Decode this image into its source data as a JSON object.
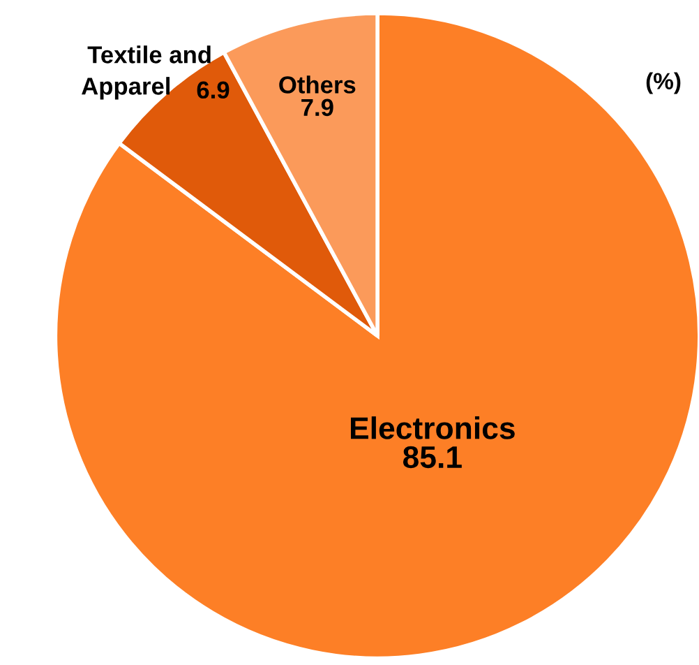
{
  "chart_data": {
    "type": "pie",
    "categories": [
      "Electronics",
      "Textile and\nApparel",
      "Others"
    ],
    "values": [
      85.1,
      6.9,
      7.9
    ],
    "colors": [
      "#fd7f26",
      "#e05a0a",
      "#fb9a5a"
    ],
    "data_labels": true,
    "annotations": [
      "(%)"
    ]
  }
}
